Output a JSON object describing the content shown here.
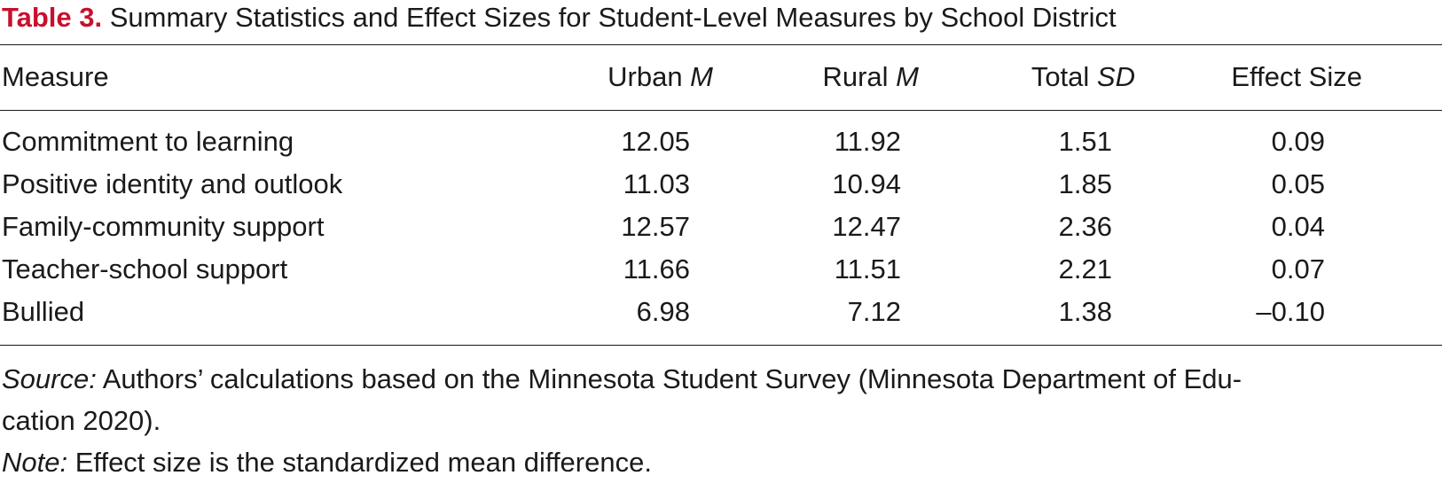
{
  "caption": {
    "label": "Table 3.",
    "title": " Summary Statistics and Effect Sizes for Student-Level Measures by School District"
  },
  "table": {
    "headers": [
      {
        "text": "Measure",
        "italic": ""
      },
      {
        "text": "Urban ",
        "italic": "M"
      },
      {
        "text": "Rural ",
        "italic": "M"
      },
      {
        "text": "Total ",
        "italic": "SD"
      },
      {
        "text": "Effect Size",
        "italic": ""
      }
    ],
    "rows": [
      [
        "Commitment to learning",
        "12.05",
        "11.92",
        "1.51",
        "0.09"
      ],
      [
        "Positive identity and outlook",
        "11.03",
        "10.94",
        "1.85",
        "0.05"
      ],
      [
        "Family-community support",
        "12.57",
        "12.47",
        "2.36",
        "0.04"
      ],
      [
        "Teacher-school support",
        "11.66",
        "11.51",
        "2.21",
        "0.07"
      ],
      [
        "Bullied",
        "6.98",
        "7.12",
        "1.38",
        "–0.10"
      ]
    ]
  },
  "notes": {
    "source_label": "Source:",
    "source_line1": " Authors’ calculations based on the Minnesota Student Survey (Minnesota Department of Edu-",
    "source_line2": "cation 2020).",
    "note_label": "Note:",
    "note_text": " Effect size is the standardized mean difference."
  }
}
